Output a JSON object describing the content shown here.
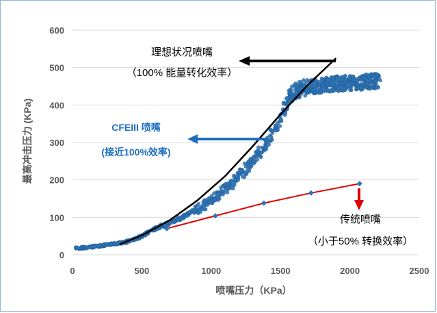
{
  "chart_data": {
    "type": "scatter",
    "xlabel": "喷嘴压力（KPa）",
    "ylabel": "最高冲击压力 (KPa)",
    "xlim": [
      0,
      2500
    ],
    "ylim": [
      0,
      600
    ],
    "x_ticks": [
      "0",
      "500",
      "1000",
      "1500",
      "2000",
      "2500"
    ],
    "y_ticks": [
      "0",
      "100",
      "200",
      "300",
      "400",
      "500",
      "600"
    ],
    "grid": "horizontal",
    "series": [
      {
        "type": "scatter",
        "color": "#2e75b6",
        "x": [
          40,
          60,
          80,
          100,
          120,
          140,
          160,
          180,
          200,
          220,
          240,
          260,
          280,
          300,
          320,
          340,
          360,
          380,
          400,
          420,
          440,
          460,
          480,
          500,
          520,
          540,
          560,
          580,
          600,
          620,
          640,
          660,
          680,
          700,
          720,
          740,
          760,
          780,
          800,
          820,
          840,
          860,
          880,
          900,
          920,
          940,
          960,
          980,
          1000,
          1020,
          1040,
          1060,
          1080,
          1100,
          1120,
          1140,
          1160,
          1180,
          1200,
          1220,
          1240,
          1260,
          1280,
          1300,
          1320,
          1340,
          1360,
          1380,
          1400,
          1420,
          1440,
          1460,
          1480,
          1500,
          1520,
          1540,
          1560,
          1580,
          1600,
          1620,
          1640,
          1660,
          1680,
          1700,
          1720,
          1740,
          1760,
          1780,
          1800,
          1820,
          1840,
          1860,
          1880,
          1900,
          1920,
          1940,
          1960,
          1980,
          2000,
          2020,
          2040,
          2060,
          2080,
          2100,
          2120,
          2140,
          2160,
          2180,
          2200
        ],
        "y": [
          18,
          18,
          19,
          19,
          20,
          21,
          22,
          23,
          24,
          25,
          26,
          27,
          28,
          29,
          30,
          31,
          33,
          34,
          36,
          38,
          40,
          43,
          46,
          50,
          54,
          58,
          62,
          66,
          70,
          73,
          76,
          79,
          82,
          86,
          89,
          92,
          95,
          99,
          102,
          106,
          110,
          114,
          118,
          122,
          126,
          131,
          136,
          141,
          146,
          151,
          157,
          163,
          169,
          175,
          181,
          188,
          195,
          202,
          210,
          218,
          226,
          234,
          242,
          251,
          260,
          270,
          279,
          289,
          300,
          312,
          325,
          338,
          352,
          368,
          384,
          400,
          413,
          425,
          434,
          440,
          443,
          445,
          447,
          448,
          449,
          450,
          451,
          452,
          453,
          454,
          455,
          456,
          456,
          457,
          457,
          458,
          458,
          459,
          459,
          460,
          460,
          461,
          461,
          462,
          462,
          463,
          463,
          464,
          465
        ]
      },
      {
        "type": "line",
        "color": "#000000",
        "x": [
          340,
          500,
          700,
          900,
          1100,
          1300,
          1500,
          1700,
          1900
        ],
        "y": [
          28,
          52,
          92,
          145,
          210,
          290,
          375,
          455,
          525
        ]
      },
      {
        "type": "line",
        "color": "#e00000",
        "marker_color": "#2e75b6",
        "x": [
          680,
          1030,
          1380,
          1720,
          2070
        ],
        "y": [
          70,
          104,
          138,
          165,
          190
        ]
      }
    ],
    "annotations": [
      {
        "text": "理想状况喷嘴",
        "color": "#000000"
      },
      {
        "text": "（100% 能量转化效率）",
        "color": "#000000"
      },
      {
        "text": "CFEIII 喷嘴",
        "color": "#1f6fc0"
      },
      {
        "text": "(接近100%效率)",
        "color": "#1f6fc0"
      },
      {
        "text": "传统喷嘴",
        "color": "#000000"
      },
      {
        "text": "（小于50% 转换效率）",
        "color": "#000000"
      }
    ],
    "colors": {
      "grid": "#d9d9d9",
      "frame_border": "#8fb3d9",
      "arrow_black": "#000000",
      "arrow_blue": "#1f6fc0",
      "arrow_red": "#e00000"
    }
  }
}
